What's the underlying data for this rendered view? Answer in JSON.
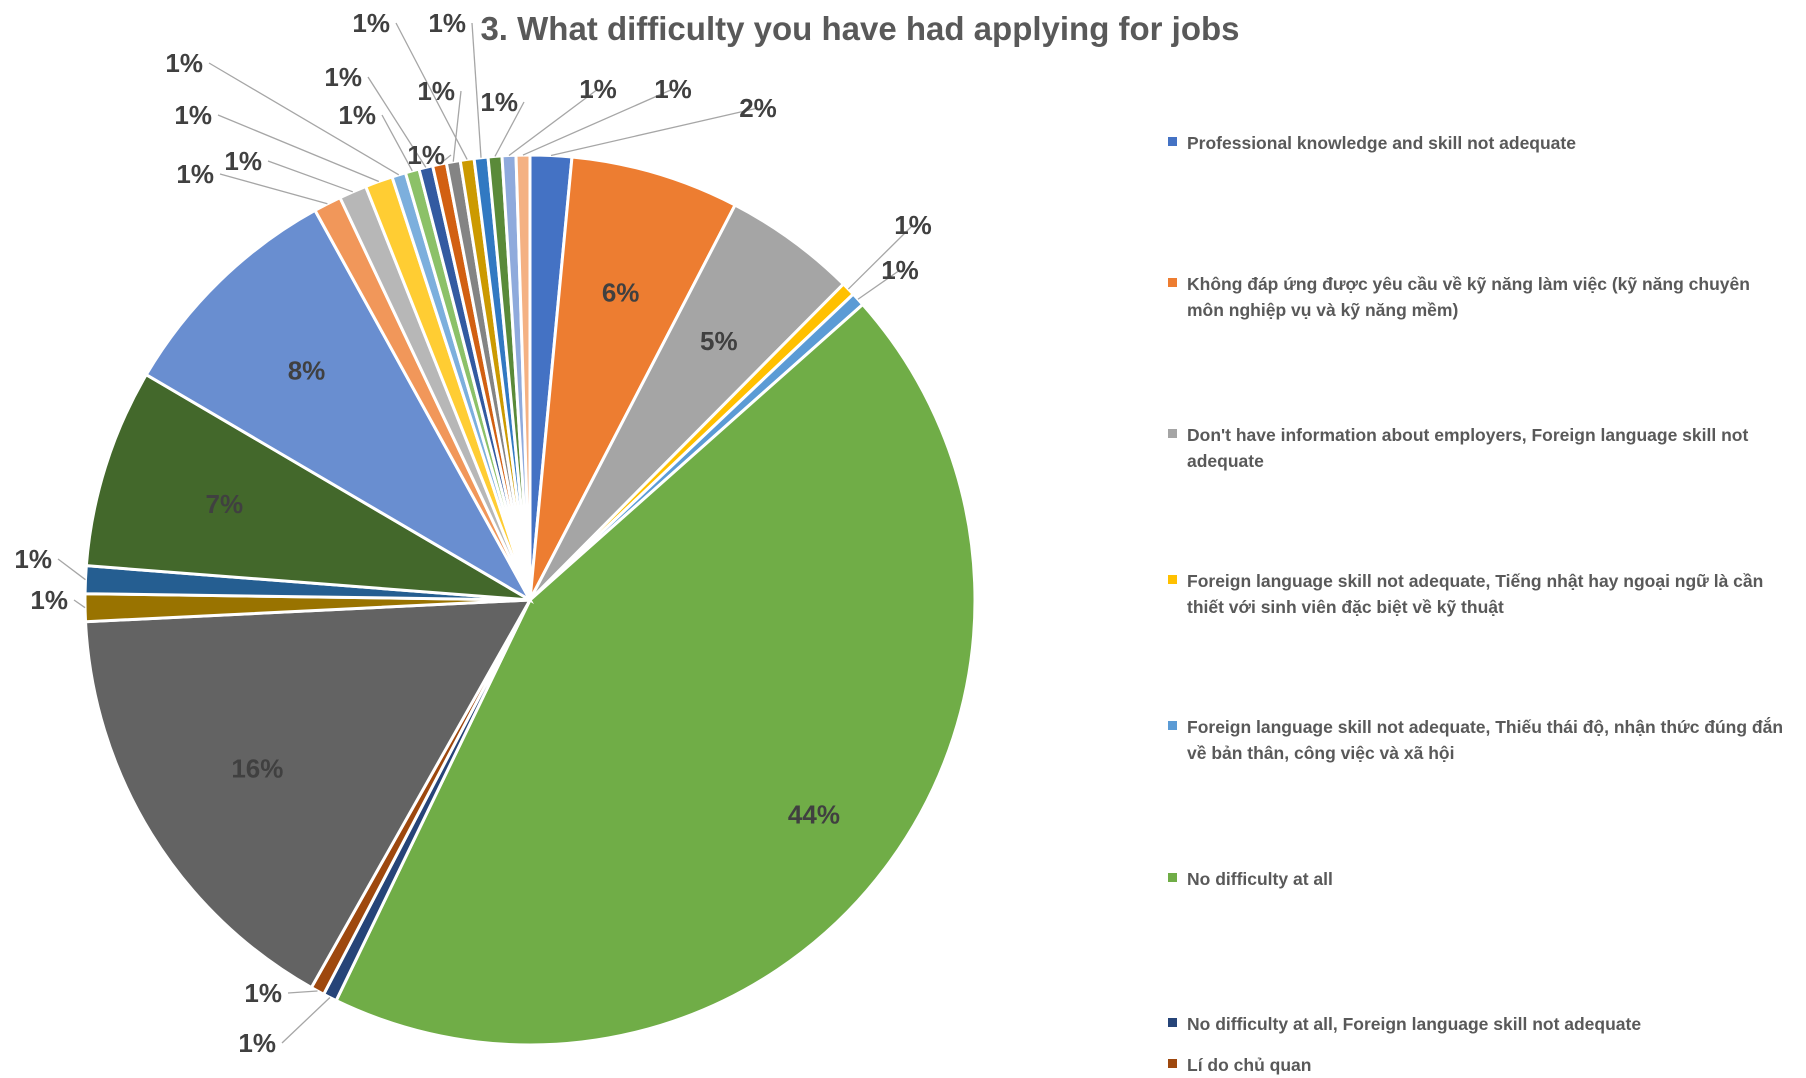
{
  "chart_data": {
    "type": "pie",
    "title": "3. What difficulty you have had applying for jobs",
    "slices": [
      {
        "label": "Professional knowledge and skill not adequate",
        "value": 1.5,
        "display": "2%",
        "color": "#4472C4"
      },
      {
        "label": "Không đáp ứng được yêu cầu về kỹ năng làm việc (kỹ năng chuyên môn nghiệp vụ và kỹ năng mềm)",
        "value": 6.1,
        "display": "6%",
        "color": "#ED7D31"
      },
      {
        "label": "Don't have information about employers, Foreign language skill not adequate",
        "value": 4.8,
        "display": "5%",
        "color": "#A5A5A5"
      },
      {
        "label": "Foreign language skill not adequate, Tiếng nhật hay ngoại ngữ là cần thiết với sinh viên đặc biệt về kỹ thuật",
        "value": 0.5,
        "display": "1%",
        "color": "#FFC000"
      },
      {
        "label": "Foreign language skill not adequate, Thiếu thái độ, nhận thức đúng đắn về bản thân, công việc và xã hội",
        "value": 0.5,
        "display": "1%",
        "color": "#5B9BD5"
      },
      {
        "label": "No difficulty at all",
        "value": 43.6,
        "display": "44%",
        "color": "#70AD47"
      },
      {
        "label": "No difficulty at all, Foreign language skill not adequate",
        "value": 0.5,
        "display": "1%",
        "color": "#264478"
      },
      {
        "label": "Lí do chủ quan",
        "value": 0.5,
        "display": "1%",
        "color": "#9E480E"
      },
      {
        "label": "",
        "value": 16.0,
        "display": "16%",
        "color": "#636363"
      },
      {
        "label": "",
        "value": 1.0,
        "display": "1%",
        "color": "#997300"
      },
      {
        "label": "",
        "value": 1.0,
        "display": "1%",
        "color": "#255E91"
      },
      {
        "label": "",
        "value": 7.2,
        "display": "7%",
        "color": "#43682B"
      },
      {
        "label": "",
        "value": 8.5,
        "display": "8%",
        "color": "#698ED0"
      },
      {
        "label": "",
        "value": 1.0,
        "display": "1%",
        "color": "#F1975A"
      },
      {
        "label": "",
        "value": 1.0,
        "display": "1%",
        "color": "#B7B7B7"
      },
      {
        "label": "",
        "value": 1.0,
        "display": "1%",
        "color": "#FFCD33"
      },
      {
        "label": "",
        "value": 0.5,
        "display": "1%",
        "color": "#7CAFDD"
      },
      {
        "label": "",
        "value": 0.5,
        "display": "1%",
        "color": "#8CC168"
      },
      {
        "label": "",
        "value": 0.5,
        "display": "1%",
        "color": "#335AA1"
      },
      {
        "label": "",
        "value": 0.5,
        "display": "1%",
        "color": "#D26012"
      },
      {
        "label": "",
        "value": 0.5,
        "display": "1%",
        "color": "#848484"
      },
      {
        "label": "",
        "value": 0.5,
        "display": "1%",
        "color": "#CC9A00"
      },
      {
        "label": "",
        "value": 0.5,
        "display": "1%",
        "color": "#3179C2"
      },
      {
        "label": "",
        "value": 0.5,
        "display": "1%",
        "color": "#5A8A39"
      },
      {
        "label": "",
        "value": 0.5,
        "display": "1%",
        "color": "#8FAADC"
      },
      {
        "label": "",
        "value": 0.5,
        "display": "1%",
        "color": "#F4B183"
      }
    ],
    "legend_position": "right"
  }
}
